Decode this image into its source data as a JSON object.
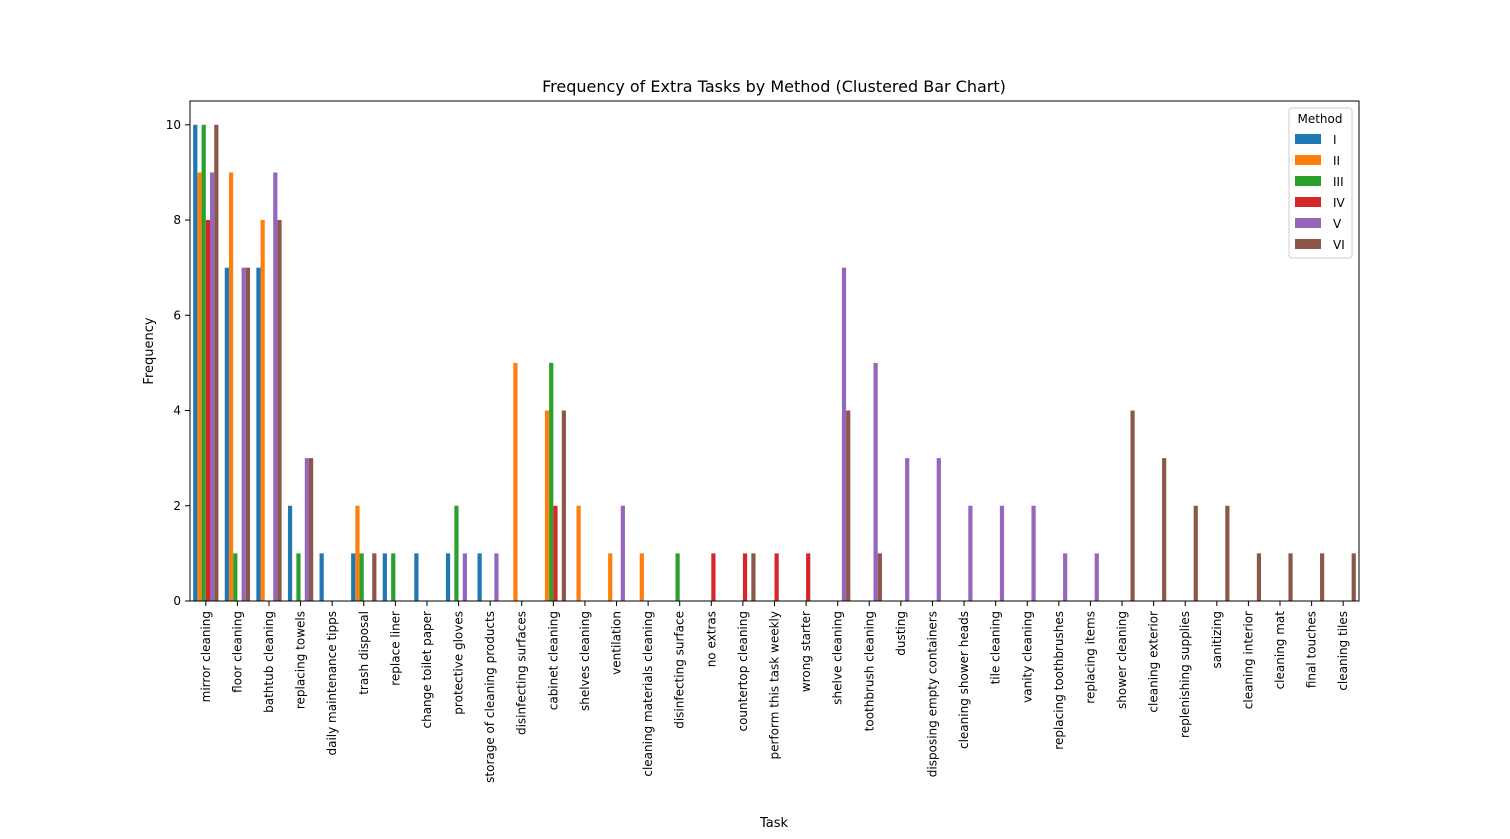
{
  "chart_data": {
    "type": "bar",
    "title": "Frequency of Extra Tasks by Method (Clustered Bar Chart)",
    "xlabel": "Task",
    "ylabel": "Frequency",
    "ylim": [
      0,
      10.5
    ],
    "yticks": [
      0,
      2,
      4,
      6,
      8,
      10
    ],
    "grid": false,
    "legend": {
      "title": "Method",
      "placement": "top-right"
    },
    "categories": [
      "mirror cleaning",
      "floor cleaning",
      "bathtub cleaning",
      "replacing towels",
      "daily maintenance tipps",
      "trash disposal",
      "replace liner",
      "change toilet paper",
      "protective gloves",
      "storage of cleaning products",
      "disinfecting surfaces",
      "cabinet cleaning",
      "shelves cleaning",
      "ventilation",
      "cleaning materials cleaning",
      "disinfecting surface",
      "no extras",
      "countertop cleaning",
      "perform this task weekly",
      "wrong starter",
      "shelve cleaning",
      "toothbrush cleaning",
      "dusting",
      "disposing empty containers",
      "cleaning shower heads",
      "tile cleaning",
      "vanity cleaning",
      "replacing toothbrushes",
      "replacing items",
      "shower cleaning",
      "cleaning exterior",
      "replenishing supplies",
      "sanitizing",
      "cleaning interior",
      "cleaning mat",
      "final touches",
      "cleaning tiles"
    ],
    "series": [
      {
        "name": "I",
        "color": "#1f77b4",
        "values": [
          10,
          7,
          7,
          2,
          1,
          1,
          1,
          1,
          1,
          1,
          0,
          0,
          0,
          0,
          0,
          0,
          0,
          0,
          0,
          0,
          0,
          0,
          0,
          0,
          0,
          0,
          0,
          0,
          0,
          0,
          0,
          0,
          0,
          0,
          0,
          0,
          0
        ]
      },
      {
        "name": "II",
        "color": "#ff7f0e",
        "values": [
          9,
          9,
          8,
          0,
          0,
          2,
          0,
          0,
          0,
          0,
          5,
          4,
          2,
          1,
          1,
          0,
          0,
          0,
          0,
          0,
          0,
          0,
          0,
          0,
          0,
          0,
          0,
          0,
          0,
          0,
          0,
          0,
          0,
          0,
          0,
          0,
          0
        ]
      },
      {
        "name": "III",
        "color": "#2ca02c",
        "values": [
          10,
          1,
          0,
          1,
          0,
          1,
          1,
          0,
          2,
          0,
          0,
          5,
          0,
          0,
          0,
          1,
          0,
          0,
          0,
          0,
          0,
          0,
          0,
          0,
          0,
          0,
          0,
          0,
          0,
          0,
          0,
          0,
          0,
          0,
          0,
          0,
          0
        ]
      },
      {
        "name": "IV",
        "color": "#d62728",
        "values": [
          8,
          0,
          0,
          0,
          0,
          0,
          0,
          0,
          0,
          0,
          0,
          2,
          0,
          0,
          0,
          0,
          1,
          1,
          1,
          1,
          0,
          0,
          0,
          0,
          0,
          0,
          0,
          0,
          0,
          0,
          0,
          0,
          0,
          0,
          0,
          0,
          0
        ]
      },
      {
        "name": "V",
        "color": "#9467bd",
        "values": [
          9,
          7,
          9,
          3,
          0,
          0,
          0,
          0,
          1,
          1,
          0,
          0,
          0,
          2,
          0,
          0,
          0,
          0,
          0,
          0,
          7,
          5,
          3,
          3,
          2,
          2,
          2,
          1,
          1,
          0,
          0,
          0,
          0,
          0,
          0,
          0,
          0
        ]
      },
      {
        "name": "VI",
        "color": "#8c564b",
        "values": [
          10,
          7,
          8,
          3,
          0,
          1,
          0,
          0,
          0,
          0,
          0,
          4,
          0,
          0,
          0,
          0,
          0,
          1,
          0,
          0,
          4,
          1,
          0,
          0,
          0,
          0,
          0,
          0,
          0,
          4,
          3,
          2,
          2,
          1,
          1,
          1,
          1
        ]
      }
    ]
  }
}
